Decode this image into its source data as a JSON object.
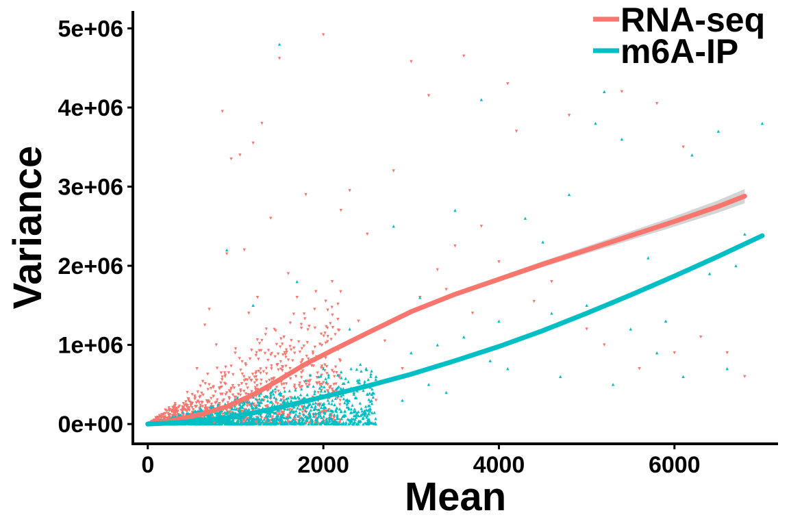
{
  "chart_data": {
    "type": "scatter",
    "xlabel": "Mean",
    "ylabel": "Variance",
    "xlim": [
      -170,
      7180
    ],
    "ylim": [
      -250000,
      5220000
    ],
    "x_ticks": [
      0,
      2000,
      4000,
      6000
    ],
    "x_tick_labels": [
      "0",
      "2000",
      "4000",
      "6000"
    ],
    "y_ticks": [
      0,
      1000000,
      2000000,
      3000000,
      4000000,
      5000000
    ],
    "y_tick_labels": [
      "0e+00",
      "1e+06",
      "2e+06",
      "3e+06",
      "4e+06",
      "5e+06"
    ],
    "grid": false,
    "legend_position": "top-right",
    "series": [
      {
        "name": "RNA-seq",
        "color": "#F8766D",
        "marker": "triangle-down",
        "trend": {
          "x": [
            0,
            300,
            600,
            900,
            1200,
            1500,
            1800,
            2100,
            2500,
            3000,
            3500,
            4000,
            4500,
            5000,
            5500,
            6000,
            6500,
            6800
          ],
          "y": [
            0,
            50000,
            120000,
            220000,
            370000,
            560000,
            760000,
            930000,
            1150000,
            1420000,
            1640000,
            1830000,
            2020000,
            2200000,
            2380000,
            2560000,
            2750000,
            2880000
          ],
          "ci_half_width": [
            5000,
            8000,
            10000,
            12000,
            14000,
            16000,
            18000,
            20000,
            22000,
            25000,
            28000,
            32000,
            38000,
            45000,
            55000,
            65000,
            78000,
            90000
          ]
        },
        "points": {
          "x": [
            850,
            1200,
            950,
            1500,
            1300,
            2000,
            1050,
            1400,
            1800,
            1100,
            900,
            700,
            650,
            1600,
            1700,
            2200,
            2500,
            3000,
            3200,
            3600,
            4100,
            4200,
            4800,
            5400,
            5800,
            6100,
            2800,
            2300,
            1250,
            780,
            560,
            450,
            320,
            1900,
            2100,
            1000,
            1350,
            1450,
            1150,
            880,
            720,
            600,
            500,
            1550,
            1650,
            2400,
            2700,
            3100,
            3300,
            3500,
            3800,
            4000,
            4400,
            4600,
            5000,
            5200,
            5600,
            6000,
            6300,
            6600,
            6800,
            2900,
            3400,
            3700,
            1750,
            1850,
            2050,
            2150,
            2350,
            2600
          ],
          "y": [
            3950000,
            3550000,
            3350000,
            4620000,
            3800000,
            4920000,
            3400000,
            2600000,
            2900000,
            2200000,
            2150000,
            1450000,
            1250000,
            1900000,
            1600000,
            2700000,
            2400000,
            4580000,
            4150000,
            4650000,
            4300000,
            3700000,
            3900000,
            4200000,
            4050000,
            3500000,
            3200000,
            2950000,
            1600000,
            1000000,
            700000,
            400000,
            200000,
            1450000,
            1800000,
            950000,
            1200000,
            850000,
            1400000,
            600000,
            450000,
            350000,
            250000,
            1100000,
            800000,
            1300000,
            1050000,
            1600000,
            1950000,
            2250000,
            2500000,
            2050000,
            1550000,
            1800000,
            1200000,
            1000000,
            700000,
            900000,
            1100000,
            900000,
            600000,
            700000,
            1700000,
            1400000,
            650000,
            550000,
            500000,
            420000,
            380000,
            300000
          ]
        }
      },
      {
        "name": "m6A-IP",
        "color": "#00BFC4",
        "marker": "triangle-up",
        "trend": {
          "x": [
            0,
            300,
            600,
            900,
            1200,
            1500,
            1800,
            2100,
            2500,
            3000,
            3500,
            4000,
            4500,
            5000,
            5500,
            6000,
            6500,
            7000
          ],
          "y": [
            0,
            15000,
            40000,
            80000,
            140000,
            210000,
            290000,
            370000,
            480000,
            630000,
            800000,
            980000,
            1180000,
            1400000,
            1630000,
            1870000,
            2120000,
            2380000
          ],
          "ci_half_width": [
            3000,
            4000,
            5000,
            6000,
            7000,
            8000,
            9000,
            10000,
            11000,
            12000,
            13000,
            14000,
            16000,
            18000,
            20000,
            22000,
            25000,
            28000
          ]
        },
        "points": {
          "x": [
            1500,
            3800,
            5200,
            6500,
            7000,
            4800,
            5100,
            5400,
            6200,
            3500,
            4300,
            2800,
            1700,
            1200,
            900,
            2300,
            3100,
            4500,
            5700,
            6800,
            3000,
            3300,
            3600,
            4000,
            4600,
            5000,
            5500,
            5900,
            6400,
            6700,
            2600,
            2000,
            1800,
            1400,
            1000,
            800,
            600,
            400,
            2200,
            2500,
            3900,
            4100,
            4700,
            5300,
            5800,
            6100,
            6600,
            2900,
            3200,
            3400
          ],
          "y": [
            4800000,
            4100000,
            4200000,
            3700000,
            3800000,
            2900000,
            3800000,
            3600000,
            3400000,
            2700000,
            2600000,
            2500000,
            1800000,
            1500000,
            2200000,
            1200000,
            1600000,
            2300000,
            2100000,
            2400000,
            900000,
            1000000,
            1100000,
            1300000,
            1400000,
            1500000,
            1200000,
            1300000,
            1900000,
            2000000,
            600000,
            700000,
            550000,
            400000,
            300000,
            250000,
            200000,
            150000,
            450000,
            380000,
            800000,
            700000,
            600000,
            500000,
            900000,
            600000,
            700000,
            300000,
            500000,
            400000
          ]
        }
      }
    ]
  }
}
